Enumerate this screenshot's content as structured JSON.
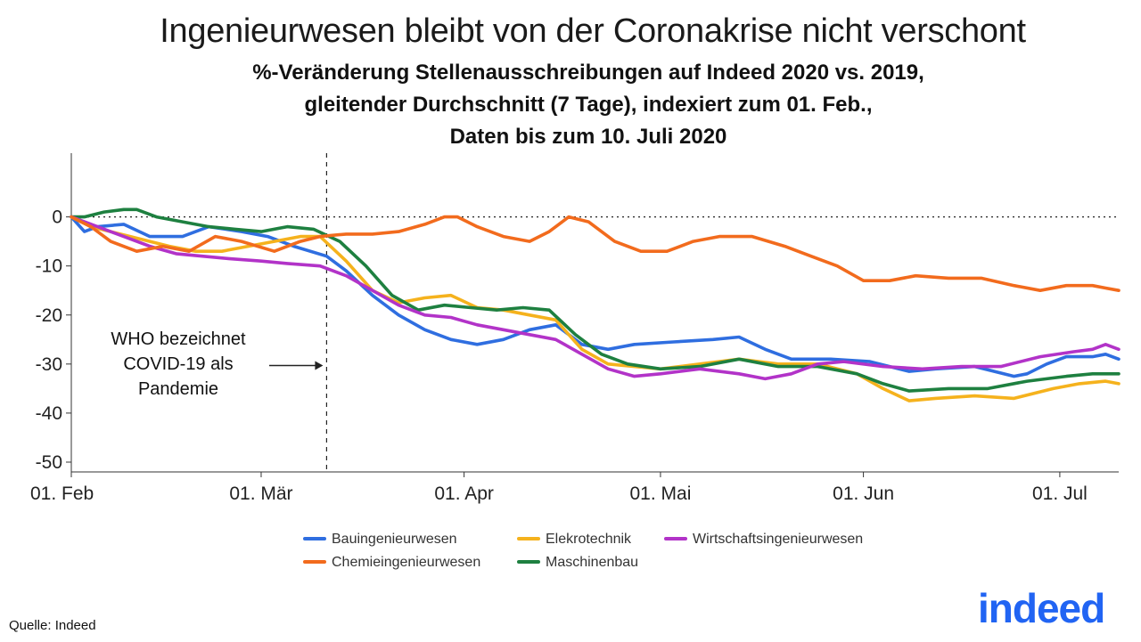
{
  "title": "Ingenieurwesen bleibt von der Coronakrise nicht verschont",
  "subtitle_lines": [
    "%-Veränderung Stellenausschreibungen auf Indeed 2020 vs. 2019,",
    "gleitender Durchschnitt (7 Tage), indexiert zum 01. Feb.,",
    "Daten bis zum 10. Juli 2020"
  ],
  "source": "Quelle: Indeed",
  "logo_text": "indeed",
  "colors": {
    "Bauingenieurwesen": "#2f6ee0",
    "Chemieingenieurwesen": "#f26b1d",
    "Elekrotechnik": "#f5b21d",
    "Maschinenbau": "#1e8040",
    "Wirtschaftsingenieurwesen": "#b233c8",
    "logo": "#2164f3"
  },
  "chart_data": {
    "type": "line",
    "x_type": "date",
    "xlim": [
      "2020-02-01",
      "2020-07-10"
    ],
    "ylim": [
      -52,
      13
    ],
    "grid": false,
    "zero_reference_line": "dotted",
    "x_ticks": [
      {
        "date": "2020-02-01",
        "label": "01. Feb"
      },
      {
        "date": "2020-03-01",
        "label": "01. Mär"
      },
      {
        "date": "2020-04-01",
        "label": "01. Apr"
      },
      {
        "date": "2020-05-01",
        "label": "01. Mai"
      },
      {
        "date": "2020-06-01",
        "label": "01. Jun"
      },
      {
        "date": "2020-07-01",
        "label": "01. Jul"
      }
    ],
    "y_ticks": [
      0,
      -10,
      -20,
      -30,
      -40,
      -50
    ],
    "legend_position": "bottom",
    "annotation": {
      "date": "2020-03-11",
      "lines": [
        "WHO bezeichnet",
        "COVID-19 als",
        "Pandemie"
      ]
    },
    "series": [
      {
        "name": "Bauingenieurwesen",
        "points": [
          [
            "2020-02-01",
            0
          ],
          [
            "2020-02-03",
            -3
          ],
          [
            "2020-02-05",
            -2
          ],
          [
            "2020-02-09",
            -1.5
          ],
          [
            "2020-02-13",
            -4
          ],
          [
            "2020-02-18",
            -4
          ],
          [
            "2020-02-22",
            -2
          ],
          [
            "2020-02-27",
            -3
          ],
          [
            "2020-03-02",
            -4
          ],
          [
            "2020-03-06",
            -6
          ],
          [
            "2020-03-11",
            -8
          ],
          [
            "2020-03-14",
            -11
          ],
          [
            "2020-03-18",
            -16
          ],
          [
            "2020-03-22",
            -20
          ],
          [
            "2020-03-26",
            -23
          ],
          [
            "2020-03-30",
            -25
          ],
          [
            "2020-04-03",
            -26
          ],
          [
            "2020-04-07",
            -25
          ],
          [
            "2020-04-11",
            -23
          ],
          [
            "2020-04-15",
            -22
          ],
          [
            "2020-04-19",
            -26
          ],
          [
            "2020-04-23",
            -27
          ],
          [
            "2020-04-27",
            -26
          ],
          [
            "2020-05-03",
            -25.5
          ],
          [
            "2020-05-09",
            -25
          ],
          [
            "2020-05-13",
            -24.5
          ],
          [
            "2020-05-17",
            -27
          ],
          [
            "2020-05-21",
            -29
          ],
          [
            "2020-05-27",
            -29
          ],
          [
            "2020-06-02",
            -29.5
          ],
          [
            "2020-06-08",
            -31.5
          ],
          [
            "2020-06-12",
            -31
          ],
          [
            "2020-06-18",
            -30.5
          ],
          [
            "2020-06-24",
            -32.5
          ],
          [
            "2020-06-26",
            -32
          ],
          [
            "2020-06-29",
            -30
          ],
          [
            "2020-07-02",
            -28.5
          ],
          [
            "2020-07-06",
            -28.5
          ],
          [
            "2020-07-08",
            -28
          ],
          [
            "2020-07-10",
            -29
          ]
        ]
      },
      {
        "name": "Chemieingenieurwesen",
        "points": [
          [
            "2020-02-01",
            0
          ],
          [
            "2020-02-04",
            -2
          ],
          [
            "2020-02-07",
            -5
          ],
          [
            "2020-02-11",
            -7
          ],
          [
            "2020-02-15",
            -6
          ],
          [
            "2020-02-19",
            -7
          ],
          [
            "2020-02-23",
            -4
          ],
          [
            "2020-02-27",
            -5
          ],
          [
            "2020-03-03",
            -7
          ],
          [
            "2020-03-07",
            -5
          ],
          [
            "2020-03-10",
            -4
          ],
          [
            "2020-03-14",
            -3.5
          ],
          [
            "2020-03-18",
            -3.5
          ],
          [
            "2020-03-22",
            -3
          ],
          [
            "2020-03-26",
            -1.5
          ],
          [
            "2020-03-29",
            0
          ],
          [
            "2020-03-31",
            0
          ],
          [
            "2020-04-03",
            -2
          ],
          [
            "2020-04-07",
            -4
          ],
          [
            "2020-04-11",
            -5
          ],
          [
            "2020-04-14",
            -3
          ],
          [
            "2020-04-17",
            0
          ],
          [
            "2020-04-20",
            -1
          ],
          [
            "2020-04-24",
            -5
          ],
          [
            "2020-04-28",
            -7
          ],
          [
            "2020-05-02",
            -7
          ],
          [
            "2020-05-06",
            -5
          ],
          [
            "2020-05-10",
            -4
          ],
          [
            "2020-05-15",
            -4
          ],
          [
            "2020-05-20",
            -6
          ],
          [
            "2020-05-24",
            -8
          ],
          [
            "2020-05-28",
            -10
          ],
          [
            "2020-06-01",
            -13
          ],
          [
            "2020-06-05",
            -13
          ],
          [
            "2020-06-09",
            -12
          ],
          [
            "2020-06-14",
            -12.5
          ],
          [
            "2020-06-19",
            -12.5
          ],
          [
            "2020-06-24",
            -14
          ],
          [
            "2020-06-28",
            -15
          ],
          [
            "2020-07-02",
            -14
          ],
          [
            "2020-07-06",
            -14
          ],
          [
            "2020-07-08",
            -14.5
          ],
          [
            "2020-07-10",
            -15
          ]
        ]
      },
      {
        "name": "Elekrotechnik",
        "points": [
          [
            "2020-02-01",
            0
          ],
          [
            "2020-02-04",
            -2
          ],
          [
            "2020-02-07",
            -3
          ],
          [
            "2020-02-10",
            -4
          ],
          [
            "2020-02-13",
            -5
          ],
          [
            "2020-02-16",
            -6
          ],
          [
            "2020-02-20",
            -7
          ],
          [
            "2020-02-24",
            -7
          ],
          [
            "2020-02-28",
            -6
          ],
          [
            "2020-03-03",
            -5
          ],
          [
            "2020-03-07",
            -4
          ],
          [
            "2020-03-10",
            -4
          ],
          [
            "2020-03-14",
            -9
          ],
          [
            "2020-03-18",
            -15
          ],
          [
            "2020-03-22",
            -17.5
          ],
          [
            "2020-03-26",
            -16.5
          ],
          [
            "2020-03-30",
            -16
          ],
          [
            "2020-04-03",
            -18.5
          ],
          [
            "2020-04-07",
            -19
          ],
          [
            "2020-04-11",
            -20
          ],
          [
            "2020-04-15",
            -21
          ],
          [
            "2020-04-19",
            -27
          ],
          [
            "2020-04-23",
            -30
          ],
          [
            "2020-04-27",
            -30.5
          ],
          [
            "2020-05-01",
            -31
          ],
          [
            "2020-05-07",
            -30
          ],
          [
            "2020-05-13",
            -29
          ],
          [
            "2020-05-19",
            -30
          ],
          [
            "2020-05-25",
            -30
          ],
          [
            "2020-05-31",
            -32
          ],
          [
            "2020-06-04",
            -35
          ],
          [
            "2020-06-08",
            -37.5
          ],
          [
            "2020-06-12",
            -37
          ],
          [
            "2020-06-18",
            -36.5
          ],
          [
            "2020-06-24",
            -37
          ],
          [
            "2020-06-30",
            -35
          ],
          [
            "2020-07-04",
            -34
          ],
          [
            "2020-07-08",
            -33.5
          ],
          [
            "2020-07-10",
            -34
          ]
        ]
      },
      {
        "name": "Maschinenbau",
        "points": [
          [
            "2020-02-01",
            0
          ],
          [
            "2020-02-03",
            0
          ],
          [
            "2020-02-06",
            1
          ],
          [
            "2020-02-09",
            1.5
          ],
          [
            "2020-02-11",
            1.5
          ],
          [
            "2020-02-14",
            0
          ],
          [
            "2020-02-18",
            -1
          ],
          [
            "2020-02-22",
            -2
          ],
          [
            "2020-02-26",
            -2.5
          ],
          [
            "2020-03-01",
            -3
          ],
          [
            "2020-03-05",
            -2
          ],
          [
            "2020-03-09",
            -2.5
          ],
          [
            "2020-03-13",
            -5
          ],
          [
            "2020-03-17",
            -10
          ],
          [
            "2020-03-21",
            -16
          ],
          [
            "2020-03-25",
            -19
          ],
          [
            "2020-03-29",
            -18
          ],
          [
            "2020-04-02",
            -18.5
          ],
          [
            "2020-04-06",
            -19
          ],
          [
            "2020-04-10",
            -18.5
          ],
          [
            "2020-04-14",
            -19
          ],
          [
            "2020-04-18",
            -24
          ],
          [
            "2020-04-22",
            -28
          ],
          [
            "2020-04-26",
            -30
          ],
          [
            "2020-05-01",
            -31
          ],
          [
            "2020-05-07",
            -30.5
          ],
          [
            "2020-05-13",
            -29
          ],
          [
            "2020-05-19",
            -30.5
          ],
          [
            "2020-05-25",
            -30.5
          ],
          [
            "2020-05-31",
            -32
          ],
          [
            "2020-06-04",
            -34
          ],
          [
            "2020-06-08",
            -35.5
          ],
          [
            "2020-06-14",
            -35
          ],
          [
            "2020-06-20",
            -35
          ],
          [
            "2020-06-26",
            -33.5
          ],
          [
            "2020-07-02",
            -32.5
          ],
          [
            "2020-07-06",
            -32
          ],
          [
            "2020-07-10",
            -32
          ]
        ]
      },
      {
        "name": "Wirtschaftsingenieurwesen",
        "points": [
          [
            "2020-02-01",
            0
          ],
          [
            "2020-02-05",
            -2
          ],
          [
            "2020-02-09",
            -4
          ],
          [
            "2020-02-13",
            -6
          ],
          [
            "2020-02-17",
            -7.5
          ],
          [
            "2020-02-21",
            -8
          ],
          [
            "2020-02-25",
            -8.5
          ],
          [
            "2020-03-01",
            -9
          ],
          [
            "2020-03-05",
            -9.5
          ],
          [
            "2020-03-10",
            -10
          ],
          [
            "2020-03-14",
            -12
          ],
          [
            "2020-03-18",
            -15
          ],
          [
            "2020-03-22",
            -18
          ],
          [
            "2020-03-26",
            -20
          ],
          [
            "2020-03-30",
            -20.5
          ],
          [
            "2020-04-03",
            -22
          ],
          [
            "2020-04-07",
            -23
          ],
          [
            "2020-04-11",
            -24
          ],
          [
            "2020-04-15",
            -25
          ],
          [
            "2020-04-19",
            -28
          ],
          [
            "2020-04-23",
            -31
          ],
          [
            "2020-04-27",
            -32.5
          ],
          [
            "2020-05-01",
            -32
          ],
          [
            "2020-05-07",
            -31
          ],
          [
            "2020-05-13",
            -32
          ],
          [
            "2020-05-17",
            -33
          ],
          [
            "2020-05-21",
            -32
          ],
          [
            "2020-05-25",
            -30
          ],
          [
            "2020-05-29",
            -29.5
          ],
          [
            "2020-06-04",
            -30.5
          ],
          [
            "2020-06-10",
            -31
          ],
          [
            "2020-06-16",
            -30.5
          ],
          [
            "2020-06-22",
            -30.5
          ],
          [
            "2020-06-28",
            -28.5
          ],
          [
            "2020-07-03",
            -27.5
          ],
          [
            "2020-07-06",
            -27
          ],
          [
            "2020-07-08",
            -26
          ],
          [
            "2020-07-10",
            -27
          ]
        ]
      }
    ],
    "legend": [
      "Bauingenieurwesen",
      "Elekrotechnik",
      "Wirtschaftsingenieurwesen",
      "Chemieingenieurwesen",
      "Maschinenbau"
    ]
  }
}
